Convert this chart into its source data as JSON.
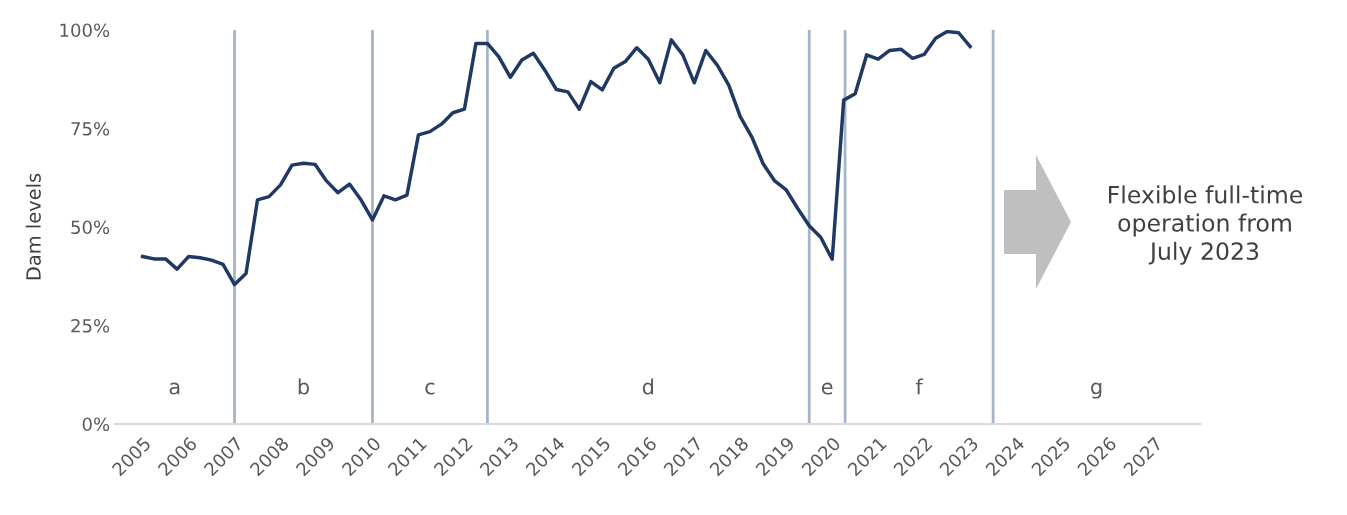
{
  "chart_data": {
    "type": "line",
    "ylabel": "Dam levels",
    "x": [
      2005.0,
      2005.25,
      2005.5,
      2005.75,
      2006.0,
      2006.25,
      2006.5,
      2006.75,
      2007.0,
      2007.25,
      2007.5,
      2007.75,
      2008.0,
      2008.25,
      2008.5,
      2008.75,
      2009.0,
      2009.25,
      2009.5,
      2009.75,
      2010.0,
      2010.25,
      2010.5,
      2010.75,
      2011.0,
      2011.25,
      2011.5,
      2011.75,
      2012.0,
      2012.25,
      2012.5,
      2012.75,
      2013.0,
      2013.25,
      2013.5,
      2013.75,
      2014.0,
      2014.25,
      2014.5,
      2014.75,
      2015.0,
      2015.25,
      2015.5,
      2015.75,
      2016.0,
      2016.25,
      2016.5,
      2016.75,
      2017.0,
      2017.25,
      2017.5,
      2017.75,
      2018.0,
      2018.25,
      2018.5,
      2018.75,
      2019.0,
      2019.25,
      2019.5,
      2019.75,
      2020.0,
      2020.25,
      2020.5,
      2020.75,
      2021.0,
      2021.25,
      2021.5,
      2021.75,
      2022.0,
      2022.25,
      2022.5,
      2022.75,
      2023.0
    ],
    "series": [
      {
        "color": "#203864",
        "values": [
          42.5,
          41.9,
          41.9,
          39.3,
          42.5,
          42.2,
          41.6,
          40.5,
          35.4,
          38.2,
          56.9,
          57.7,
          60.7,
          65.7,
          66.2,
          65.9,
          61.7,
          58.7,
          60.9,
          56.9,
          51.8,
          57.9,
          56.9,
          58.1,
          73.4,
          74.2,
          76.1,
          79.0,
          79.9,
          96.6,
          96.6,
          93.2,
          88.0,
          92.4,
          94.1,
          89.8,
          84.9,
          84.3,
          79.9,
          86.9,
          84.8,
          90.3,
          92.0,
          95.5,
          92.6,
          86.6,
          97.5,
          93.7,
          86.6,
          94.8,
          91.1,
          86.0,
          78.0,
          72.9,
          66.0,
          61.7,
          59.4,
          54.7,
          50.3,
          47.4,
          41.8,
          82.2,
          83.8,
          93.7,
          92.6,
          94.8,
          95.1,
          92.8,
          93.8,
          97.9,
          99.6,
          99.3,
          95.8
        ]
      }
    ],
    "xlim": [
      2004.4,
      2028
    ],
    "xticks": [
      2005,
      2006,
      2007,
      2008,
      2009,
      2010,
      2011,
      2012,
      2013,
      2014,
      2015,
      2016,
      2017,
      2018,
      2019,
      2020,
      2021,
      2022,
      2023,
      2024,
      2025,
      2026,
      2027
    ],
    "ylim": [
      0,
      100
    ],
    "yticks": [
      {
        "value": 0,
        "label": "0%"
      },
      {
        "value": 25,
        "label": "25%"
      },
      {
        "value": 50,
        "label": "50%"
      },
      {
        "value": 75,
        "label": "75%"
      },
      {
        "value": 100,
        "label": "100%"
      }
    ],
    "ref_lines": [
      {
        "axis": "x",
        "value": 2007.0,
        "color": "#a6b4c8"
      },
      {
        "axis": "x",
        "value": 2010.0,
        "color": "#a6b4c8"
      },
      {
        "axis": "x",
        "value": 2012.5,
        "color": "#a6b4c8"
      },
      {
        "axis": "x",
        "value": 2019.5,
        "color": "#a6b4c8"
      },
      {
        "axis": "x",
        "value": 2020.28,
        "color": "#a6b4c8"
      },
      {
        "axis": "x",
        "value": 2023.5,
        "color": "#a6b4c8"
      }
    ],
    "annotations": [
      "a",
      "b",
      "c",
      "d",
      "e",
      "f",
      "g",
      "Flexible full-time\noperation from\nJuly 2023"
    ],
    "grid": false,
    "legend": false,
    "marker": "none",
    "line_style": "solid"
  }
}
